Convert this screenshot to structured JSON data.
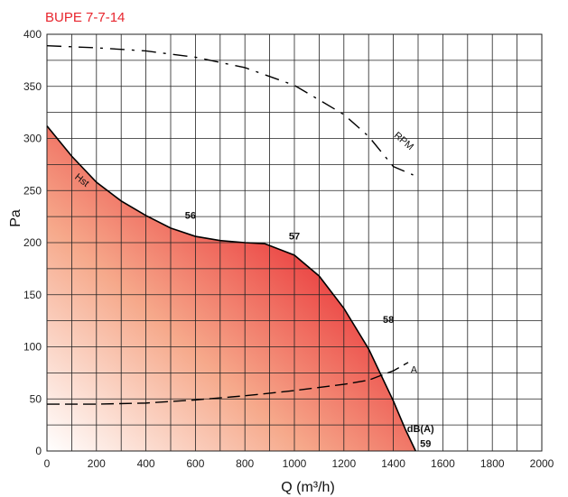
{
  "chart_data": {
    "type": "line",
    "title": "BUPE 7-7-14",
    "xlabel": "Q (m³/h)",
    "ylabel": "Pa",
    "xlim": [
      0,
      2000
    ],
    "ylim": [
      0,
      400
    ],
    "x_ticks": [
      "0",
      "200",
      "400",
      "600",
      "800",
      "1000",
      "1200",
      "1400",
      "1600",
      "1800",
      "2000"
    ],
    "y_ticks": [
      "0",
      "50",
      "100",
      "150",
      "200",
      "250",
      "300",
      "350",
      "400"
    ],
    "grid": true,
    "series": [
      {
        "name": "Hst",
        "style": "solid",
        "x": [
          0,
          100,
          200,
          300,
          400,
          500,
          600,
          700,
          800,
          880,
          1000,
          1100,
          1200,
          1300,
          1400,
          1450,
          1490
        ],
        "y": [
          312,
          283,
          258,
          240,
          226,
          214,
          206,
          202,
          200,
          199,
          188,
          168,
          137,
          98,
          48,
          20,
          0
        ]
      },
      {
        "name": "RPM",
        "style": "dash-dot",
        "x": [
          0,
          200,
          400,
          600,
          800,
          1000,
          1200,
          1300,
          1400,
          1480
        ],
        "y": [
          389,
          387,
          384,
          378,
          368,
          351,
          323,
          302,
          273,
          265
        ]
      },
      {
        "name": "A",
        "style": "dashed",
        "x": [
          0,
          200,
          400,
          600,
          800,
          1000,
          1200,
          1300,
          1400,
          1460
        ],
        "y": [
          45,
          45,
          46,
          49,
          53,
          58,
          64,
          68,
          77,
          85
        ]
      }
    ],
    "annotations": [
      {
        "text": "56",
        "x": 580,
        "y": 223
      },
      {
        "text": "57",
        "x": 1000,
        "y": 203
      },
      {
        "text": "58",
        "x": 1380,
        "y": 123
      },
      {
        "text": "dB(A)",
        "x": 1510,
        "y": 18
      },
      {
        "text": "59",
        "x": 1530,
        "y": 4
      }
    ],
    "colors": {
      "title": "#e8262e",
      "fill_strong": "#e8262e",
      "fill_light": "#fbe2d6",
      "grid": "#222222",
      "curve": "#000000"
    }
  }
}
